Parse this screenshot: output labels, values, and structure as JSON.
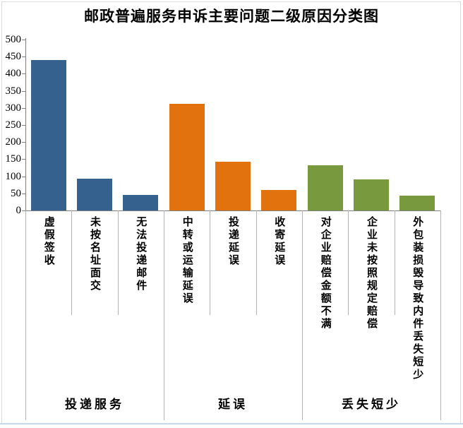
{
  "chart_data": {
    "type": "bar",
    "title": "邮政普遍服务申诉主要问题二级原因分类图",
    "categories": [
      "虚假签收",
      "未按名址面交",
      "无法投递邮件",
      "中转或运输延误",
      "投递延误",
      "收寄延误",
      "对企业赔偿金额不满",
      "企业未按照规定赔偿",
      "外包装损毁导致内件丢失短少"
    ],
    "values": [
      441,
      94,
      46,
      311,
      143,
      59,
      133,
      90,
      44
    ],
    "bar_colors": [
      "#35618F",
      "#35618F",
      "#35618F",
      "#E2720E",
      "#E2720E",
      "#E2720E",
      "#78993E",
      "#78993E",
      "#78993E"
    ],
    "groups": [
      {
        "label": "投递服务",
        "color": "#35618F",
        "items": [
          {
            "label": "虚假签收",
            "value": 441
          },
          {
            "label": "未按名址面交",
            "value": 94
          },
          {
            "label": "无法投递邮件",
            "value": 46
          }
        ]
      },
      {
        "label": "延误",
        "color": "#E2720E",
        "items": [
          {
            "label": "中转或运输延误",
            "value": 311
          },
          {
            "label": "投递延误",
            "value": 143
          },
          {
            "label": "收寄延误",
            "value": 59
          }
        ]
      },
      {
        "label": "丢失短少",
        "color": "#78993E",
        "items": [
          {
            "label": "对企业赔偿金额不满",
            "value": 133
          },
          {
            "label": "企业未按照规定赔偿",
            "value": 90
          },
          {
            "label": "外包装损毁导致内件丢失短少",
            "value": 44
          }
        ]
      }
    ],
    "xlabel": "",
    "ylabel": "",
    "ylim": [
      0,
      500
    ],
    "ytick_step": 50,
    "yticks": [
      0,
      50,
      100,
      150,
      200,
      250,
      300,
      350,
      400,
      450,
      500
    ],
    "grid": false,
    "legend": false,
    "colors": {
      "axis": "#7f7f7f",
      "divider": "#b3b3b3",
      "bottom_accent": "#c7d7ee"
    }
  }
}
